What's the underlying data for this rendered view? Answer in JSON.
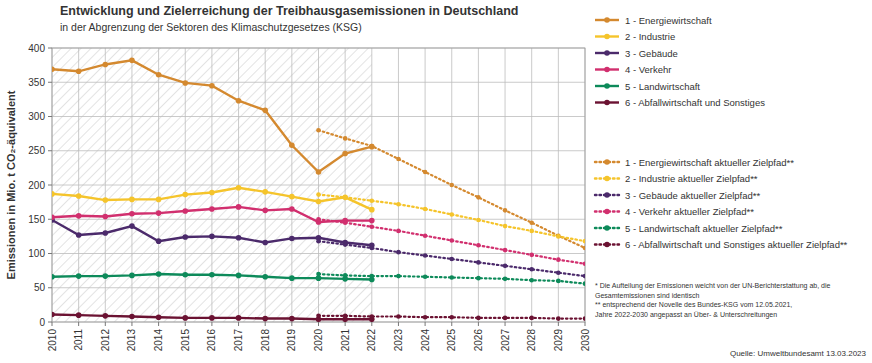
{
  "chart_data": {
    "type": "line",
    "title": "Entwicklung und Zielerreichung der Treibhausgasemissionen in Deutschland",
    "subtitle": "in der Abgrenzung der Sektoren des Klimaschutzgesetzes (KSG)",
    "y_label": "Emissionen in Mio. t CO₂-äquivalent",
    "annotations": [
      "* Die Aufteilung der Emissionen weicht von der UN-Berichterstattung ab, die",
      "Gesamtemissionen sind identisch",
      "** entsprechend der Novelle des Bundes-KSG vom 12.05.2021,",
      "Jahre 2022-2030 angepasst an Über- & Unterschreitungen"
    ],
    "source": "Quelle: Umweltbundesamt 13.03.2023",
    "x": [
      2010,
      2011,
      2012,
      2013,
      2014,
      2015,
      2016,
      2017,
      2018,
      2019,
      2020,
      2021,
      2022,
      2023,
      2024,
      2025,
      2026,
      2027,
      2028,
      2029,
      2030
    ],
    "xlim": [
      2010,
      2030
    ],
    "xticks": [
      2010,
      2011,
      2012,
      2013,
      2014,
      2015,
      2016,
      2017,
      2018,
      2019,
      2020,
      2021,
      2022,
      2023,
      2024,
      2025,
      2026,
      2027,
      2028,
      2029,
      2030
    ],
    "ylim": [
      0,
      400
    ],
    "yticks": [
      0,
      50,
      100,
      150,
      200,
      250,
      300,
      350,
      400
    ],
    "grid": true,
    "legend": "right",
    "series": [
      {
        "name": "1 - Energiewirtschaft",
        "color": "#d4892f",
        "line_style": "solid",
        "marker": "circle",
        "values": [
          369,
          366,
          376,
          382,
          361,
          349,
          345,
          323,
          309,
          258,
          219,
          246,
          256,
          null,
          null,
          null,
          null,
          null,
          null,
          null,
          null
        ]
      },
      {
        "name": "2 - Industrie",
        "color": "#f5c42b",
        "line_style": "solid",
        "marker": "circle",
        "values": [
          187,
          184,
          178,
          179,
          179,
          186,
          189,
          196,
          190,
          183,
          176,
          182,
          164,
          null,
          null,
          null,
          null,
          null,
          null,
          null,
          null
        ]
      },
      {
        "name": "3 - Gebäude",
        "color": "#4b2a6b",
        "line_style": "solid",
        "marker": "circle",
        "values": [
          149,
          127,
          130,
          140,
          118,
          124,
          125,
          123,
          116,
          122,
          123,
          116,
          112,
          null,
          null,
          null,
          null,
          null,
          null,
          null,
          null
        ]
      },
      {
        "name": "4 - Verkehr",
        "color": "#d12f6e",
        "line_style": "solid",
        "marker": "circle",
        "values": [
          153,
          155,
          154,
          158,
          159,
          162,
          165,
          168,
          163,
          165,
          146,
          148,
          148,
          null,
          null,
          null,
          null,
          null,
          null,
          null,
          null
        ]
      },
      {
        "name": "5 - Landwirtschaft",
        "color": "#0d8a5a",
        "line_style": "solid",
        "marker": "circle",
        "values": [
          66,
          67,
          67,
          68,
          70,
          69,
          69,
          68,
          66,
          64,
          64,
          63,
          62,
          null,
          null,
          null,
          null,
          null,
          null,
          null,
          null
        ]
      },
      {
        "name": "6 - Abfallwirtschaft und Sonstiges",
        "color": "#6b1232",
        "line_style": "solid",
        "marker": "circle",
        "values": [
          11,
          10,
          9,
          8,
          7,
          6,
          6,
          6,
          5,
          5,
          4,
          4,
          4,
          null,
          null,
          null,
          null,
          null,
          null,
          null,
          null
        ]
      },
      {
        "name": "1 - Energiewirtschaft aktueller Zielpfad**",
        "color": "#d4892f",
        "line_style": "dotted",
        "marker": "circle",
        "values": [
          null,
          null,
          null,
          null,
          null,
          null,
          null,
          null,
          null,
          null,
          280,
          268,
          257,
          238,
          219,
          200,
          182,
          163,
          145,
          126,
          108
        ]
      },
      {
        "name": "2 - Industrie aktueller Zielpfad**",
        "color": "#f5c42b",
        "line_style": "dotted",
        "marker": "circle",
        "values": [
          null,
          null,
          null,
          null,
          null,
          null,
          null,
          null,
          null,
          null,
          186,
          182,
          177,
          172,
          165,
          157,
          149,
          140,
          133,
          125,
          118
        ]
      },
      {
        "name": "3 - Gebäude aktueller Zielpfad**",
        "color": "#4b2a6b",
        "line_style": "dotted",
        "marker": "circle",
        "values": [
          null,
          null,
          null,
          null,
          null,
          null,
          null,
          null,
          null,
          null,
          118,
          113,
          108,
          102,
          97,
          92,
          87,
          82,
          77,
          72,
          67
        ]
      },
      {
        "name": "4 - Verkehr aktueller Zielpfad**",
        "color": "#d12f6e",
        "line_style": "dotted",
        "marker": "circle",
        "values": [
          null,
          null,
          null,
          null,
          null,
          null,
          null,
          null,
          null,
          null,
          150,
          145,
          139,
          133,
          126,
          119,
          112,
          105,
          98,
          91,
          85
        ]
      },
      {
        "name": "5 - Landwirtschaft aktueller Zielpfad**",
        "color": "#0d8a5a",
        "line_style": "dotted",
        "marker": "circle",
        "values": [
          null,
          null,
          null,
          null,
          null,
          null,
          null,
          null,
          null,
          null,
          70,
          68,
          67,
          67,
          66,
          65,
          64,
          63,
          61,
          60,
          56
        ]
      },
      {
        "name": "6 - Abfallwirtschaft und Sonstiges aktueller Zielpfad**",
        "color": "#6b1232",
        "line_style": "dotted",
        "marker": "circle",
        "values": [
          null,
          null,
          null,
          null,
          null,
          null,
          null,
          null,
          null,
          null,
          9,
          9,
          8,
          8,
          7,
          7,
          6,
          6,
          6,
          5,
          5
        ]
      }
    ]
  }
}
